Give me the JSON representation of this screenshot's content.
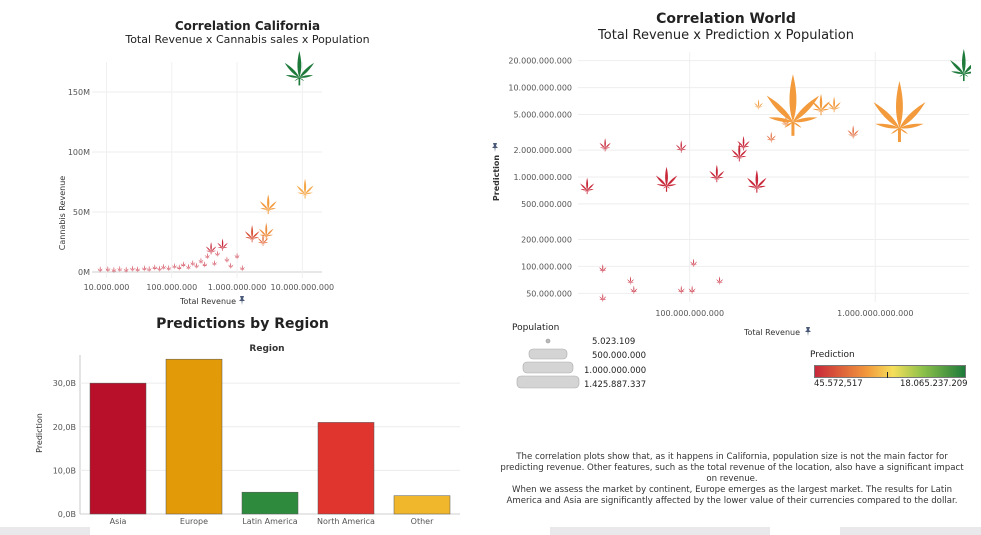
{
  "california": {
    "title": "Correlation California",
    "subtitle": "Total Revenue x Cannabis sales x Population",
    "xlabel": "Total Revenue",
    "ylabel": "Cannabis Revenue",
    "xticks": [
      "10.000.000",
      "100.000.000",
      "1.000.000.000",
      "10.000.000.000"
    ],
    "yticks": [
      "0M",
      "50M",
      "100M",
      "150M"
    ]
  },
  "region": {
    "title": "Predictions by Region",
    "header": "Region",
    "ylabel": "Prediction",
    "yticks": [
      "0,0B",
      "10,0B",
      "20,0B",
      "30,0B"
    ]
  },
  "world": {
    "title": "Correlation World",
    "subtitle": "Total Revenue x Prediction x Population",
    "xlabel": "Total Revenue",
    "ylabel": "Prediction",
    "yticks": [
      "50.000.000",
      "100.000.000",
      "200.000.000",
      "500.000.000",
      "1.000.000.000",
      "2.000.000.000",
      "5.000.000.000",
      "10.000.000.000",
      "20.000.000.000"
    ],
    "xticks": [
      "100.000.000.000",
      "1.000.000.000.000"
    ]
  },
  "legend_population": {
    "title": "Population",
    "values": [
      "5.023.109",
      "500.000.000",
      "1.000.000.000",
      "1.425.887.337"
    ]
  },
  "legend_prediction": {
    "title": "Prediction",
    "min": "45.572,517",
    "max": "18.065.237.209",
    "colors": [
      "#c8283a",
      "#f29a3c",
      "#f5df5a",
      "#8cc04a",
      "#1e7a3a"
    ]
  },
  "narrative": {
    "line1": "The correlation plots show that, as it happens in California, population size is not the main factor for predicting revenue. Other features, such as the total revenue of the location, also have a significant impact on revenue.",
    "line2": "When we assess the market by continent, Europe emerges as the largest market. The results for Latin America and Asia are significantly affected by the lower value of their currencies compared to the dollar."
  },
  "chart_data": [
    {
      "type": "scatter",
      "title": "Correlation California",
      "subtitle": "Total Revenue x Cannabis sales x Population",
      "xlabel": "Total Revenue",
      "ylabel": "Cannabis Revenue",
      "x_scale": "log",
      "xlim": [
        6000000,
        20000000000
      ],
      "ylim": [
        -5000000,
        175000000
      ],
      "points": [
        {
          "x": 8000000,
          "y": 800000,
          "color": "#c8283a"
        },
        {
          "x": 10500000,
          "y": 1000000,
          "color": "#c8283a"
        },
        {
          "x": 13000000,
          "y": 400000,
          "color": "#c8283a"
        },
        {
          "x": 16000000,
          "y": 1200000,
          "color": "#c8283a"
        },
        {
          "x": 20000000,
          "y": 600000,
          "color": "#c8283a"
        },
        {
          "x": 25000000,
          "y": 1500000,
          "color": "#c8283a"
        },
        {
          "x": 30000000,
          "y": 900000,
          "color": "#c8283a"
        },
        {
          "x": 38000000,
          "y": 1800000,
          "color": "#c8283a"
        },
        {
          "x": 45000000,
          "y": 1200000,
          "color": "#c8283a"
        },
        {
          "x": 55000000,
          "y": 2500000,
          "color": "#c8283a"
        },
        {
          "x": 65000000,
          "y": 1500000,
          "color": "#c8283a"
        },
        {
          "x": 75000000,
          "y": 3000000,
          "color": "#c8283a"
        },
        {
          "x": 90000000,
          "y": 2000000,
          "color": "#c8283a"
        },
        {
          "x": 110000000,
          "y": 3500000,
          "color": "#c8283a"
        },
        {
          "x": 130000000,
          "y": 2500000,
          "color": "#c8283a"
        },
        {
          "x": 150000000,
          "y": 5000000,
          "color": "#c8283a"
        },
        {
          "x": 180000000,
          "y": 3000000,
          "color": "#c8283a"
        },
        {
          "x": 210000000,
          "y": 6000000,
          "color": "#c8283a"
        },
        {
          "x": 240000000,
          "y": 4000000,
          "color": "#c8283a"
        },
        {
          "x": 280000000,
          "y": 8000000,
          "color": "#c8283a"
        },
        {
          "x": 320000000,
          "y": 5000000,
          "color": "#c8283a"
        },
        {
          "x": 350000000,
          "y": 12000000,
          "color": "#c8283a"
        },
        {
          "x": 400000000,
          "y": 17000000,
          "color": "#c8283a"
        },
        {
          "x": 450000000,
          "y": 6000000,
          "color": "#c8283a"
        },
        {
          "x": 500000000,
          "y": 14000000,
          "color": "#c8283a"
        },
        {
          "x": 600000000,
          "y": 20000000,
          "color": "#c8283a"
        },
        {
          "x": 700000000,
          "y": 9000000,
          "color": "#c8283a"
        },
        {
          "x": 800000000,
          "y": 4000000,
          "color": "#c8283a"
        },
        {
          "x": 1000000000,
          "y": 12000000,
          "color": "#c8283a"
        },
        {
          "x": 1200000000,
          "y": 2000000,
          "color": "#c8283a"
        },
        {
          "x": 1700000000,
          "y": 28000000,
          "color": "#d9533a"
        },
        {
          "x": 2500000000,
          "y": 24000000,
          "color": "#e36b3c"
        },
        {
          "x": 2800000000,
          "y": 30000000,
          "color": "#ef8e3e"
        },
        {
          "x": 3000000000,
          "y": 52000000,
          "color": "#f29a3c"
        },
        {
          "x": 11000000000,
          "y": 65000000,
          "color": "#f5a848"
        },
        {
          "x": 9000000000,
          "y": 162000000,
          "color": "#1e7a3a"
        }
      ]
    },
    {
      "type": "bar",
      "title": "Predictions by Region",
      "xlabel": "Region",
      "ylabel": "Prediction",
      "categories": [
        "Asia",
        "Europe",
        "Latin America",
        "North America",
        "Other"
      ],
      "values": [
        30000000000,
        35500000000,
        5000000000,
        21000000000,
        4200000000
      ],
      "colors": [
        "#b8102a",
        "#e39a08",
        "#2e8b3e",
        "#e0342f",
        "#f1b72c"
      ],
      "ylim": [
        0,
        36000000000
      ]
    },
    {
      "type": "scatter",
      "title": "Correlation World",
      "subtitle": "Total Revenue x Prediction x Population",
      "xlabel": "Total Revenue",
      "ylabel": "Prediction",
      "x_scale": "log",
      "y_scale": "log",
      "xlim": [
        25000000000,
        3200000000000
      ],
      "ylim": [
        40000000,
        25000000000
      ],
      "points": [
        {
          "x": 28000000000,
          "y": 800000000,
          "pop": 60000000,
          "color": "#c8283a"
        },
        {
          "x": 35000000000,
          "y": 2300000000,
          "pop": 30000000,
          "color": "#c8283a"
        },
        {
          "x": 34000000000,
          "y": 95000000,
          "pop": 6000000,
          "color": "#c8283a"
        },
        {
          "x": 34000000000,
          "y": 45000000,
          "pop": 5023109,
          "color": "#c8283a"
        },
        {
          "x": 48000000000,
          "y": 70000000,
          "pop": 5023109,
          "color": "#c8283a"
        },
        {
          "x": 50000000000,
          "y": 55000000,
          "pop": 5023109,
          "color": "#c8283a"
        },
        {
          "x": 75000000000,
          "y": 950000000,
          "pop": 180000000,
          "color": "#c8283a"
        },
        {
          "x": 90000000000,
          "y": 2200000000,
          "pop": 25000000,
          "color": "#c8283a"
        },
        {
          "x": 90000000000,
          "y": 55000000,
          "pop": 5023109,
          "color": "#c8283a"
        },
        {
          "x": 103000000000,
          "y": 55000000,
          "pop": 5023109,
          "color": "#c8283a"
        },
        {
          "x": 105000000000,
          "y": 110000000,
          "pop": 5023109,
          "color": "#c8283a"
        },
        {
          "x": 140000000000,
          "y": 1100000000,
          "pop": 70000000,
          "color": "#c8283a"
        },
        {
          "x": 145000000000,
          "y": 70000000,
          "pop": 5023109,
          "color": "#c8283a"
        },
        {
          "x": 185000000000,
          "y": 1900000000,
          "pop": 80000000,
          "color": "#c8283a"
        },
        {
          "x": 195000000000,
          "y": 2400000000,
          "pop": 40000000,
          "color": "#c8283a"
        },
        {
          "x": 230000000000,
          "y": 900000000,
          "pop": 140000000,
          "color": "#c8283a"
        },
        {
          "x": 235000000000,
          "y": 6500000000,
          "pop": 12000000,
          "color": "#f29a3c"
        },
        {
          "x": 275000000000,
          "y": 2800000000,
          "pop": 15000000,
          "color": "#e36b3c"
        },
        {
          "x": 330000000000,
          "y": 4200000000,
          "pop": 18000000,
          "color": "#e98540"
        },
        {
          "x": 360000000000,
          "y": 6500000000,
          "pop": 1425887337,
          "color": "#f29a3c"
        },
        {
          "x": 510000000000,
          "y": 6500000000,
          "pop": 120000000,
          "color": "#f29a3c"
        },
        {
          "x": 600000000000,
          "y": 6500000000,
          "pop": 50000000,
          "color": "#f29a3c"
        },
        {
          "x": 760000000000,
          "y": 3200000000,
          "pop": 30000000,
          "color": "#e36b3c"
        },
        {
          "x": 1350000000000,
          "y": 5500000000,
          "pop": 1400000000,
          "color": "#f29a3c"
        },
        {
          "x": 3000000000000,
          "y": 18065237209,
          "pop": 330000000,
          "color": "#1e7a3a"
        }
      ]
    }
  ]
}
